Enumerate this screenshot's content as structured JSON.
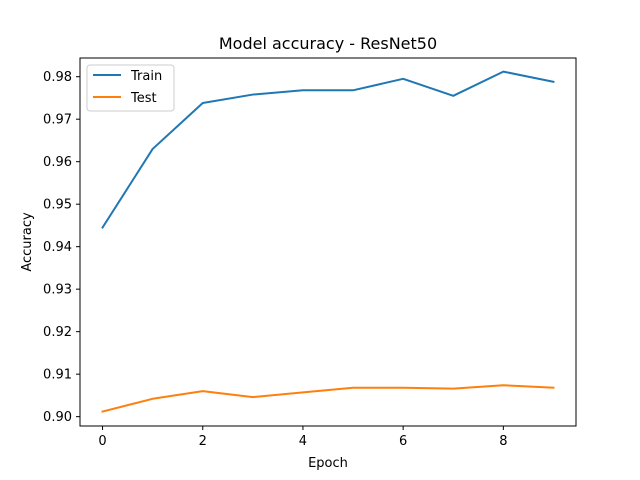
{
  "chart_data": {
    "type": "line",
    "title": "Model accuracy - ResNet50",
    "xlabel": "Epoch",
    "ylabel": "Accuracy",
    "x": [
      0,
      1,
      2,
      3,
      4,
      5,
      6,
      7,
      8,
      9
    ],
    "series": [
      {
        "name": "Train",
        "color": "#1f77b4",
        "values": [
          0.9445,
          0.963,
          0.9738,
          0.9758,
          0.9768,
          0.9768,
          0.9795,
          0.9755,
          0.9812,
          0.9788
        ]
      },
      {
        "name": "Test",
        "color": "#ff7f0e",
        "values": [
          0.9012,
          0.9042,
          0.906,
          0.9046,
          0.9057,
          0.9068,
          0.9068,
          0.9066,
          0.9074,
          0.9068
        ]
      }
    ],
    "xlim": [
      -0.45,
      9.45
    ],
    "ylim": [
      0.8978,
      0.9844
    ],
    "xticks": [
      0,
      2,
      4,
      6,
      8
    ],
    "xtick_labels": [
      "0",
      "2",
      "4",
      "6",
      "8"
    ],
    "yticks": [
      0.9,
      0.91,
      0.92,
      0.93,
      0.94,
      0.95,
      0.96,
      0.97,
      0.98
    ],
    "ytick_labels": [
      "0.90",
      "0.91",
      "0.92",
      "0.93",
      "0.94",
      "0.95",
      "0.96",
      "0.97",
      "0.98"
    ],
    "grid": false,
    "legend_position": "top-left"
  }
}
